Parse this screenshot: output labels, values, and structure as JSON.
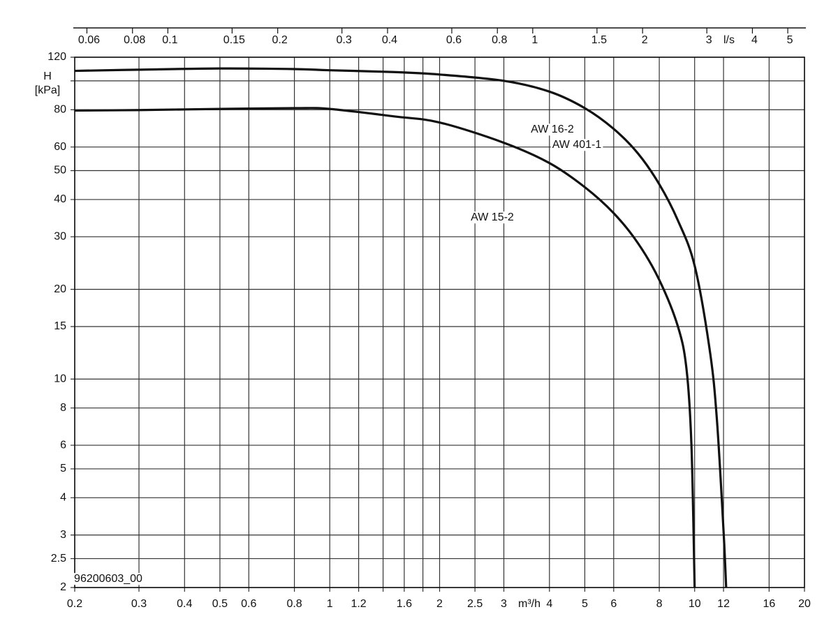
{
  "chart_data": {
    "type": "line",
    "ylabel": "H",
    "yunit": "[kPa]",
    "xunit": "m³/h",
    "x2unit": "l/s",
    "xlog": true,
    "ylog": true,
    "grid": true,
    "xlim": [
      0.2,
      20
    ],
    "xticks": [
      0.2,
      0.3,
      0.4,
      0.5,
      0.6,
      0.8,
      1,
      1.2,
      1.6,
      2,
      2.5,
      3,
      4,
      5,
      6,
      8,
      10,
      12,
      16,
      20
    ],
    "xminor": [
      1.4,
      1.8
    ],
    "x2lim": [
      0.05556,
      5.556
    ],
    "x2ticks": [
      0.06,
      0.08,
      0.1,
      0.15,
      0.2,
      0.3,
      0.4,
      0.6,
      0.8,
      1,
      1.5,
      2,
      3,
      4,
      5
    ],
    "ylim": [
      2,
      120
    ],
    "yticks": [
      2,
      2.5,
      3,
      4,
      5,
      6,
      8,
      10,
      15,
      20,
      30,
      40,
      50,
      60,
      80,
      120
    ],
    "yminor": [
      100
    ],
    "series": [
      {
        "color": "#111111",
        "x": [
          0.2,
          0.3,
          0.5,
          0.8,
          1,
          1.5,
          2,
          3,
          4,
          5,
          6,
          7,
          8,
          9,
          10,
          11,
          11.5,
          12,
          12.2
        ],
        "values": [
          108,
          109,
          110,
          109.5,
          108.5,
          107,
          105,
          100,
          92,
          81,
          69,
          57,
          45,
          34,
          24,
          12.5,
          7.4,
          3.1,
          2
        ]
      },
      {
        "color": "#111111",
        "x": [
          0.2,
          0.3,
          0.5,
          0.8,
          1,
          1.5,
          2,
          3,
          4,
          5,
          6,
          7,
          8,
          9,
          9.5,
          9.8,
          10
        ],
        "values": [
          79.5,
          79.8,
          80.5,
          81,
          80.5,
          76,
          72.5,
          62,
          53,
          44,
          36,
          28.5,
          21.5,
          15,
          10.8,
          6,
          2
        ]
      }
    ],
    "annotations": [
      "AW 16-2",
      "AW 401-1",
      "AW 15-2",
      "96200603_00"
    ]
  }
}
